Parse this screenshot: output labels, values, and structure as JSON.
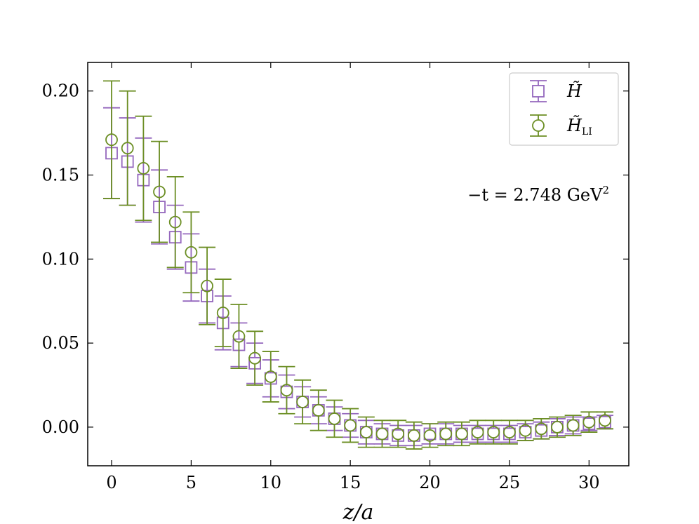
{
  "chart_data": {
    "type": "scatter",
    "xlabel": "z/a",
    "ylabel": "",
    "xlim": [
      -1.5,
      32.5
    ],
    "ylim": [
      -0.023,
      0.217
    ],
    "xticks": [
      0,
      5,
      10,
      15,
      20,
      25,
      30
    ],
    "xtick_labels": [
      "0",
      "5",
      "10",
      "15",
      "20",
      "25",
      "30"
    ],
    "yticks": [
      0.0,
      0.05,
      0.1,
      0.15,
      0.2
    ],
    "ytick_labels": [
      "0.00",
      "0.05",
      "0.10",
      "0.15",
      "0.20"
    ],
    "annotation": {
      "prefix": "−t = 2.748 GeV",
      "superscript": "2"
    },
    "legend_position": "top-right",
    "grid": false,
    "series": [
      {
        "name": "H̃",
        "name_subscript": "",
        "marker": "square",
        "color": "#9467bd",
        "x": [
          0,
          1,
          2,
          3,
          4,
          5,
          6,
          7,
          8,
          9,
          10,
          11,
          12,
          13,
          14,
          15,
          16,
          17,
          18,
          19,
          20,
          21,
          22,
          23,
          24,
          25,
          26,
          27,
          28,
          29,
          30,
          31
        ],
        "y": [
          0.163,
          0.158,
          0.147,
          0.131,
          0.113,
          0.095,
          0.078,
          0.062,
          0.049,
          0.038,
          0.029,
          0.021,
          0.015,
          0.01,
          0.005,
          0.001,
          -0.003,
          -0.004,
          -0.005,
          -0.005,
          -0.004,
          -0.004,
          -0.004,
          -0.004,
          -0.004,
          -0.004,
          -0.003,
          -0.002,
          0.0,
          0.001,
          0.002,
          0.003
        ],
        "yerr": [
          0.027,
          0.026,
          0.025,
          0.022,
          0.019,
          0.02,
          0.016,
          0.016,
          0.013,
          0.012,
          0.011,
          0.01,
          0.009,
          0.008,
          0.007,
          0.007,
          0.007,
          0.006,
          0.006,
          0.006,
          0.006,
          0.006,
          0.005,
          0.005,
          0.005,
          0.005,
          0.005,
          0.005,
          0.005,
          0.005,
          0.004,
          0.004
        ]
      },
      {
        "name": "H̃",
        "name_subscript": "LI",
        "marker": "circle",
        "color": "#6b8e23",
        "x": [
          0,
          1,
          2,
          3,
          4,
          5,
          6,
          7,
          8,
          9,
          10,
          11,
          12,
          13,
          14,
          15,
          16,
          17,
          18,
          19,
          20,
          21,
          22,
          23,
          24,
          25,
          26,
          27,
          28,
          29,
          30,
          31
        ],
        "y": [
          0.171,
          0.166,
          0.154,
          0.14,
          0.122,
          0.104,
          0.084,
          0.068,
          0.054,
          0.041,
          0.03,
          0.022,
          0.015,
          0.01,
          0.005,
          0.001,
          -0.003,
          -0.004,
          -0.004,
          -0.005,
          -0.005,
          -0.004,
          -0.004,
          -0.003,
          -0.003,
          -0.003,
          -0.002,
          -0.001,
          0.0,
          0.001,
          0.003,
          0.004
        ],
        "yerr": [
          0.035,
          0.034,
          0.031,
          0.03,
          0.027,
          0.024,
          0.023,
          0.02,
          0.019,
          0.016,
          0.015,
          0.014,
          0.013,
          0.012,
          0.011,
          0.01,
          0.009,
          0.008,
          0.008,
          0.008,
          0.007,
          0.007,
          0.007,
          0.007,
          0.007,
          0.007,
          0.006,
          0.006,
          0.006,
          0.006,
          0.006,
          0.005
        ]
      }
    ]
  }
}
